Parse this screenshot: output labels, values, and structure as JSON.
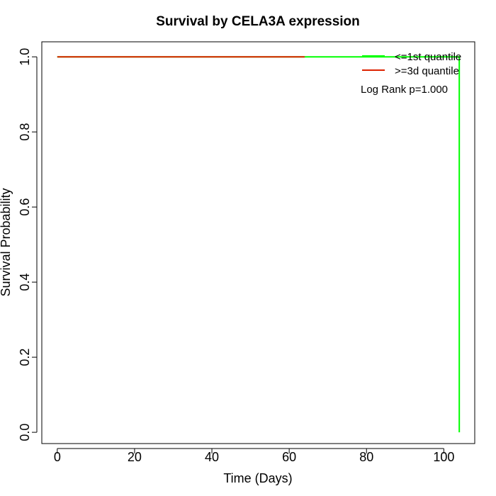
{
  "chart_data": {
    "type": "line",
    "title": "Survival by CELA3A expression",
    "xlabel": "Time (Days)",
    "ylabel": "Survival Probability",
    "xlim": [
      -4,
      108
    ],
    "ylim": [
      -0.03,
      1.04
    ],
    "x_ticks": [
      0,
      20,
      40,
      60,
      80,
      100
    ],
    "y_ticks": [
      0.0,
      0.2,
      0.4,
      0.6,
      0.8,
      1.0
    ],
    "x_tick_labels": [
      "0",
      "20",
      "40",
      "60",
      "80",
      "100"
    ],
    "y_tick_labels": [
      "0.0",
      "0.2",
      "0.4",
      "0.6",
      "0.8",
      "1.0"
    ],
    "grid": false,
    "legend_position": "top-right",
    "annotation": "Log Rank p=1.000",
    "series": [
      {
        "name": "<=1st quantile",
        "color": "#00ff00",
        "points": [
          [
            0,
            1.0
          ],
          [
            104,
            1.0
          ],
          [
            104,
            0.0
          ]
        ]
      },
      {
        "name": ">=3d quantile",
        "color": "#dd2200",
        "points": [
          [
            0,
            1.0
          ],
          [
            64,
            1.0
          ]
        ]
      }
    ]
  }
}
